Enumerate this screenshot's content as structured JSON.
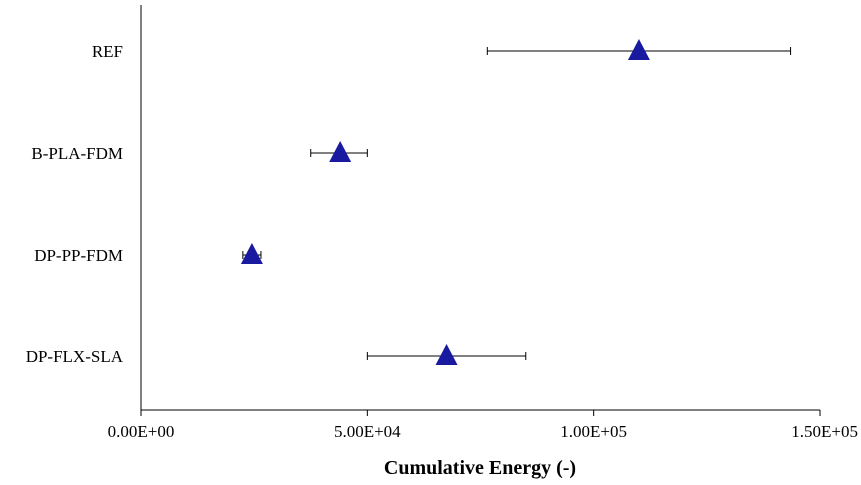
{
  "chart_data": {
    "type": "scatter",
    "orientation": "horizontal",
    "categories": [
      "REF",
      "B-PLA-FDM",
      "DP-PP-FDM",
      "DP-FLX-SLA"
    ],
    "series": [
      {
        "values": [
          110000,
          44000,
          24500,
          67500
        ],
        "error_low": [
          76500,
          37500,
          22500,
          50000
        ],
        "error_high": [
          143500,
          50000,
          26500,
          85000
        ],
        "marker": "triangle",
        "color": "#1a1aa0"
      }
    ],
    "xlabel": "Cumulative Energy (-)",
    "ylabel": "",
    "xlim": [
      0,
      150000
    ],
    "xticks": [
      0,
      50000,
      100000,
      150000
    ],
    "xtick_labels": [
      "0.00E+00",
      "5.00E+04",
      "1.00E+05",
      "1.50E+05"
    ],
    "grid": false,
    "legend": "none"
  }
}
